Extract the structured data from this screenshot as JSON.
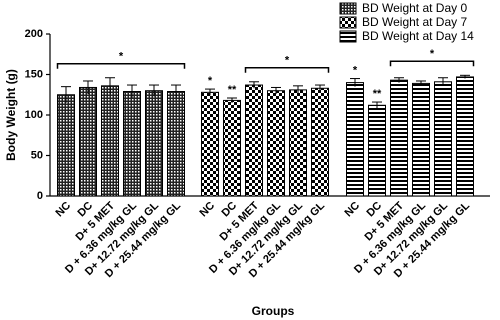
{
  "chart_data": {
    "type": "bar",
    "y_label": "Body Weight (g)",
    "x_label": "Groups",
    "categories": [
      "NC",
      "DC",
      "D+ 5 MET",
      "D + 6.36 mg/kg GL",
      "D+ 12.72 mg/kg GL",
      "D + 25.44 mg/kg GL"
    ],
    "ylim": [
      0,
      200
    ],
    "yticks": [
      0,
      50,
      100,
      150,
      200
    ],
    "legend": "top-right",
    "series": [
      {
        "name": "BD Weight at Day 0",
        "color": "#000000",
        "pattern": "fine-checker",
        "values": [
          125,
          134,
          136,
          129,
          130,
          129
        ],
        "errors": [
          10,
          8,
          10,
          8,
          7,
          8
        ],
        "labels": [
          null,
          null,
          null,
          null,
          null,
          null
        ],
        "bracket": {
          "from": 0,
          "to": 5,
          "label": "*"
        }
      },
      {
        "name": "BD Weight at Day 7",
        "color": "#000000",
        "pattern": "checker",
        "values": [
          128,
          118,
          137,
          130,
          131,
          133
        ],
        "errors": [
          4,
          3,
          4,
          4,
          5,
          4
        ],
        "labels": [
          "*",
          "**",
          null,
          null,
          null,
          null
        ],
        "bracket": {
          "from": 2,
          "to": 5,
          "label": "*"
        }
      },
      {
        "name": "BD Weight at Day 14",
        "color": "#000000",
        "pattern": "stripes",
        "values": [
          140,
          112,
          143,
          139,
          141,
          147
        ],
        "errors": [
          5,
          4,
          3,
          3,
          5,
          2
        ],
        "labels": [
          "*",
          "**",
          null,
          null,
          null,
          null
        ],
        "bracket": {
          "from": 2,
          "to": 5,
          "label": "*"
        }
      }
    ]
  }
}
